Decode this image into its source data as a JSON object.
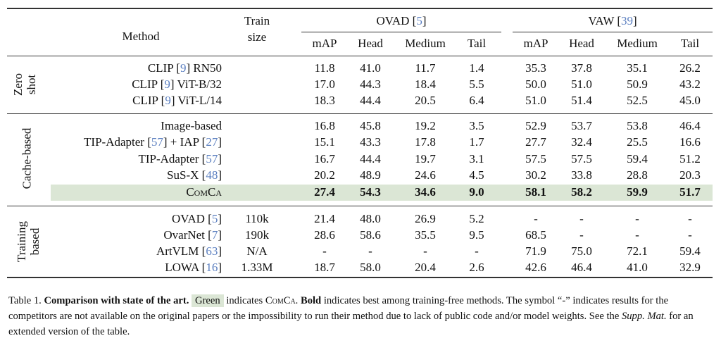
{
  "header": {
    "method": "Method",
    "train_size_line1": "Train",
    "train_size_line2": "size",
    "groups": [
      {
        "name": "OVAD ",
        "ref": "5"
      },
      {
        "name": "VAW ",
        "ref": "39"
      }
    ],
    "metrics": [
      "mAP",
      "Head",
      "Medium",
      "Tail",
      "mAP",
      "Head",
      "Medium",
      "Tail"
    ]
  },
  "sections": [
    {
      "label_lines": [
        "Zero",
        "shot"
      ],
      "rows": [
        {
          "method": [
            {
              "t": "CLIP "
            },
            {
              "ref": "9"
            },
            {
              "t": " RN50"
            }
          ],
          "train": "",
          "values": [
            "11.8",
            "41.0",
            "11.7",
            "1.4",
            "35.3",
            "37.8",
            "35.1",
            "26.2"
          ]
        },
        {
          "method": [
            {
              "t": "CLIP "
            },
            {
              "ref": "9"
            },
            {
              "t": " ViT-B/32"
            }
          ],
          "train": "",
          "values": [
            "17.0",
            "44.3",
            "18.4",
            "5.5",
            "50.0",
            "51.0",
            "50.9",
            "43.2"
          ]
        },
        {
          "method": [
            {
              "t": "CLIP "
            },
            {
              "ref": "9"
            },
            {
              "t": " ViT-L/14"
            }
          ],
          "train": "",
          "values": [
            "18.3",
            "44.4",
            "20.5",
            "6.4",
            "51.0",
            "51.4",
            "52.5",
            "45.0"
          ]
        }
      ]
    },
    {
      "label_lines": [
        "Cache-based"
      ],
      "rows": [
        {
          "method": [
            {
              "t": "Image-based"
            }
          ],
          "train": "",
          "values": [
            "16.8",
            "45.8",
            "19.2",
            "3.5",
            "52.9",
            "53.7",
            "53.8",
            "46.4"
          ]
        },
        {
          "method": [
            {
              "t": "TIP-Adapter "
            },
            {
              "ref": "57"
            },
            {
              "t": " + IAP "
            },
            {
              "ref": "27"
            }
          ],
          "train": "",
          "values": [
            "15.1",
            "43.3",
            "17.8",
            "1.7",
            "27.7",
            "32.4",
            "25.5",
            "16.6"
          ]
        },
        {
          "method": [
            {
              "t": "TIP-Adapter "
            },
            {
              "ref": "57"
            }
          ],
          "train": "",
          "values": [
            "16.7",
            "44.4",
            "19.7",
            "3.1",
            "57.5",
            "57.5",
            "59.4",
            "51.2"
          ]
        },
        {
          "method": [
            {
              "t": "SuS-X "
            },
            {
              "ref": "48"
            }
          ],
          "train": "",
          "values": [
            "20.2",
            "48.9",
            "24.6",
            "4.5",
            "30.2",
            "33.8",
            "28.8",
            "20.3"
          ]
        },
        {
          "method": [
            {
              "sc": "ComCa"
            }
          ],
          "train": "",
          "highlight": true,
          "bold": true,
          "values": [
            "27.4",
            "54.3",
            "34.6",
            "9.0",
            "58.1",
            "58.2",
            "59.9",
            "51.7"
          ]
        }
      ]
    },
    {
      "label_lines": [
        "Training",
        "based"
      ],
      "rows": [
        {
          "method": [
            {
              "t": "OVAD "
            },
            {
              "ref": "5"
            }
          ],
          "train": "110k",
          "values": [
            "21.4",
            "48.0",
            "26.9",
            "5.2",
            "-",
            "-",
            "-",
            "-"
          ]
        },
        {
          "method": [
            {
              "t": "OvarNet "
            },
            {
              "ref": "7"
            }
          ],
          "train": "190k",
          "values": [
            "28.6",
            "58.6",
            "35.5",
            "9.5",
            "68.5",
            "-",
            "-",
            "-"
          ]
        },
        {
          "method": [
            {
              "t": "ArtVLM "
            },
            {
              "ref": "63"
            }
          ],
          "train": "N/A",
          "values": [
            "-",
            "-",
            "-",
            "-",
            "71.9",
            "75.0",
            "72.1",
            "59.4"
          ]
        },
        {
          "method": [
            {
              "t": "LOWA "
            },
            {
              "ref": "16"
            }
          ],
          "train": "1.33M",
          "values": [
            "18.7",
            "58.0",
            "20.4",
            "2.6",
            "42.6",
            "46.4",
            "41.0",
            "32.9"
          ]
        }
      ]
    }
  ],
  "caption": {
    "prefix": "Table 1. ",
    "title": "Comparison with state of the art.",
    "green_word": "Green",
    "text1": " indicates ",
    "method_name": "ComCa",
    "text2": ". ",
    "bold_word": "Bold",
    "text3": " indicates best among training-free methods. The symbol “-” indicates results for the competitors are not available on the original papers or the impossibility to run their method due to lack of public code and/or model weights. See the ",
    "italic": "Supp. Mat.",
    "text4": " for an extended version of the table."
  },
  "colors": {
    "highlight": "#dbe6d5",
    "citation": "#5b7fc0"
  }
}
